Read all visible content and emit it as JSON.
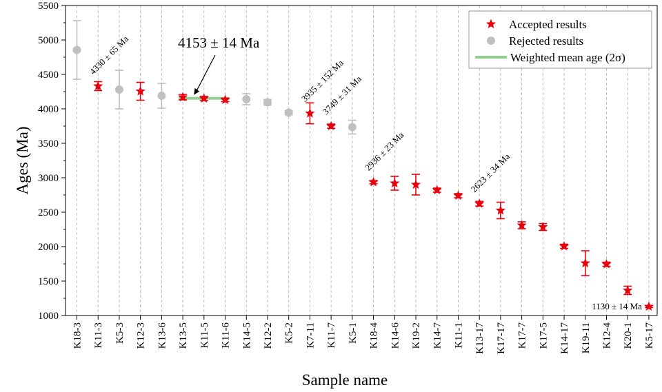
{
  "chart_data": {
    "type": "scatter",
    "xlabel": "Sample name",
    "ylabel": "Ages (Ma)",
    "ylim": [
      1000,
      5500
    ],
    "yticks": [
      1000,
      1500,
      2000,
      2500,
      3000,
      3500,
      4000,
      4500,
      5000,
      5500
    ],
    "grid": "vertical dashed",
    "legend_position": "top-right",
    "categories": [
      "K18-3",
      "K11-3",
      "K5-3",
      "K12-3",
      "K13-6",
      "K13-5",
      "K11-5",
      "K11-6",
      "K14-5",
      "K12-2",
      "K5-2",
      "K7-11",
      "K11-7",
      "K5-1",
      "K18-4",
      "K14-6",
      "K19-2",
      "K14-7",
      "K11-1",
      "K13-17",
      "K17-17",
      "K17-7",
      "K17-5",
      "K14-17",
      "K19-11",
      "K12-4",
      "K20-1",
      "K5-17"
    ],
    "series": [
      {
        "name": "Accepted results",
        "marker": "star",
        "color": "#e8000b",
        "points": [
          {
            "x": "K11-3",
            "y": 4330,
            "err": 65
          },
          {
            "x": "K12-3",
            "y": 4255,
            "err": 130
          },
          {
            "x": "K13-5",
            "y": 4170,
            "err": 40
          },
          {
            "x": "K11-5",
            "y": 4150,
            "err": 30
          },
          {
            "x": "K11-6",
            "y": 4130,
            "err": 25
          },
          {
            "x": "K7-11",
            "y": 3935,
            "err": 152
          },
          {
            "x": "K11-7",
            "y": 3749,
            "err": 31
          },
          {
            "x": "K18-4",
            "y": 2936,
            "err": 23
          },
          {
            "x": "K14-6",
            "y": 2920,
            "err": 100
          },
          {
            "x": "K19-2",
            "y": 2900,
            "err": 150
          },
          {
            "x": "K14-7",
            "y": 2820,
            "err": 30
          },
          {
            "x": "K11-1",
            "y": 2740,
            "err": 30
          },
          {
            "x": "K13-17",
            "y": 2623,
            "err": 34
          },
          {
            "x": "K17-17",
            "y": 2525,
            "err": 120
          },
          {
            "x": "K17-7",
            "y": 2310,
            "err": 50
          },
          {
            "x": "K17-5",
            "y": 2285,
            "err": 50
          },
          {
            "x": "K14-17",
            "y": 2005,
            "err": 30
          },
          {
            "x": "K19-11",
            "y": 1760,
            "err": 180
          },
          {
            "x": "K12-4",
            "y": 1745,
            "err": 30
          },
          {
            "x": "K20-1",
            "y": 1365,
            "err": 60
          },
          {
            "x": "K5-17",
            "y": 1130,
            "err": 14
          }
        ]
      },
      {
        "name": "Rejected results",
        "marker": "circle",
        "color": "#c0c0c0",
        "points": [
          {
            "x": "K18-3",
            "y": 4855,
            "err": 425
          },
          {
            "x": "K5-3",
            "y": 4280,
            "err": 280
          },
          {
            "x": "K13-6",
            "y": 4190,
            "err": 180
          },
          {
            "x": "K14-5",
            "y": 4140,
            "err": 80
          },
          {
            "x": "K12-2",
            "y": 4095,
            "err": 40
          },
          {
            "x": "K5-2",
            "y": 3945,
            "err": 30
          },
          {
            "x": "K5-1",
            "y": 3735,
            "err": 100
          }
        ]
      }
    ],
    "weighted_mean": {
      "name": "Weighted mean age (2σ)",
      "color": "#8fd08f",
      "value": 4153,
      "from": "K13-5",
      "to": "K11-6",
      "label": "4153 ± 14 Ma"
    },
    "annotations": [
      {
        "x": "K11-3",
        "y": 4330,
        "text": "4330 ± 65 Ma"
      },
      {
        "x": "K7-11",
        "y": 3935,
        "text": "3935 ± 152 Ma"
      },
      {
        "x": "K11-7",
        "y": 3749,
        "text": "3749 ± 31 Ma"
      },
      {
        "x": "K18-4",
        "y": 2936,
        "text": "2936 ± 23 Ma"
      },
      {
        "x": "K13-17",
        "y": 2623,
        "text": "2623 ± 34 Ma"
      },
      {
        "x": "K5-17",
        "y": 1130,
        "text": "1130 ± 14 Ma",
        "horizontal": true
      }
    ]
  }
}
